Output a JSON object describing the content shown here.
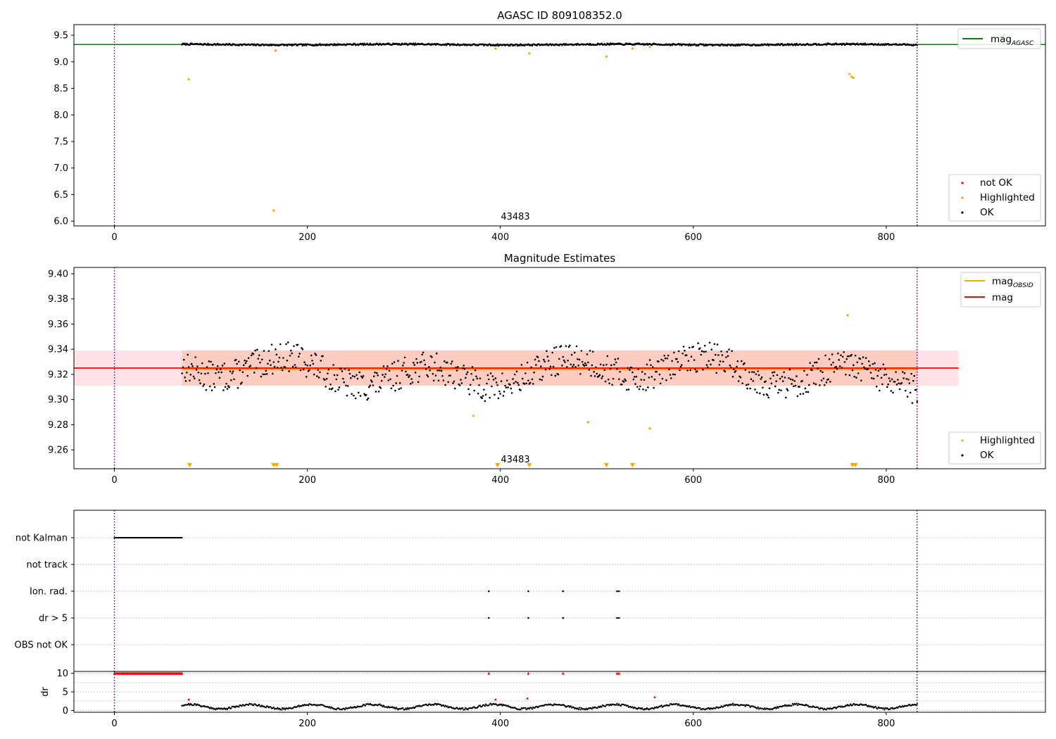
{
  "colors": {
    "ok": "#000000",
    "highlighted": "#ffa500",
    "not_ok": "#ff0000",
    "mag_agasc_line": "#008000",
    "mag_obsid_line": "#ffa500",
    "mag_line": "#ff0000",
    "vline": "#800080",
    "band_obsid": "#ffa07a",
    "band_mag": "#ffc0cb"
  },
  "chart_data": [
    {
      "type": "scatter",
      "title": "AGASC ID 809108352.0",
      "xlim": [
        -42,
        965
      ],
      "ylim": [
        5.91,
        9.7
      ],
      "x_ticks": [
        "0",
        "200",
        "400",
        "600",
        "800"
      ],
      "y_ticks": [
        "6.0",
        "6.5",
        "7.0",
        "7.5",
        "8.0",
        "8.5",
        "9.0",
        "9.5"
      ],
      "annotation": "43483",
      "vertical_lines": [
        0,
        832
      ],
      "hlines": [
        {
          "name": "mag_AGASC",
          "y": 9.325
        }
      ],
      "legend_upper": [
        {
          "label_main": "mag",
          "label_sub": "AGASC",
          "color_key": "mag_agasc_line"
        }
      ],
      "legend_lower": [
        {
          "label": "not OK",
          "color_key": "not_ok"
        },
        {
          "label": "Highlighted",
          "color_key": "highlighted"
        },
        {
          "label": "OK",
          "color_key": "ok"
        }
      ],
      "ok_series": {
        "x_range": [
          70,
          832
        ],
        "baseline": 9.325,
        "noise": 0.015
      },
      "highlighted_points": [
        [
          77,
          8.67
        ],
        [
          165,
          6.2
        ],
        [
          167,
          9.21
        ],
        [
          395,
          9.25
        ],
        [
          430,
          9.16
        ],
        [
          510,
          9.1
        ],
        [
          537,
          9.25
        ],
        [
          555,
          9.28
        ],
        [
          762,
          8.77
        ],
        [
          764,
          8.72
        ],
        [
          766,
          8.7
        ]
      ]
    },
    {
      "type": "scatter",
      "title": "Magnitude Estimates",
      "xlim": [
        -42,
        965
      ],
      "ylim": [
        9.245,
        9.405
      ],
      "x_ticks": [
        "0",
        "200",
        "400",
        "600",
        "800"
      ],
      "y_ticks": [
        "9.26",
        "9.28",
        "9.30",
        "9.32",
        "9.34",
        "9.36",
        "9.38",
        "9.40"
      ],
      "annotation": "43483",
      "vertical_lines": [
        0,
        832
      ],
      "mag_line": {
        "y": 9.325,
        "band": [
          9.311,
          9.339
        ],
        "x_range": [
          -42,
          875
        ]
      },
      "mag_obsid_line": {
        "y": 9.324,
        "band": [
          9.311,
          9.339
        ],
        "x_range": [
          70,
          832
        ]
      },
      "legend_upper": [
        {
          "label_main": "mag",
          "label_sub": "OBSID",
          "color_key": "mag_obsid_line"
        },
        {
          "label_main": "mag",
          "label_sub": "",
          "color_key": "mag_line"
        }
      ],
      "legend_lower": [
        {
          "label": "Highlighted",
          "color_key": "highlighted"
        },
        {
          "label": "OK",
          "color_key": "ok"
        }
      ],
      "ok_series": {
        "x_range": [
          70,
          832
        ],
        "baseline": 9.322,
        "noise": 0.012
      },
      "highlighted_points": [
        [
          372,
          9.287
        ],
        [
          491,
          9.282
        ],
        [
          555,
          9.277
        ],
        [
          760,
          9.367
        ]
      ],
      "down_markers": [
        78,
        165,
        168,
        397,
        430,
        510,
        537,
        765,
        768
      ]
    },
    {
      "type": "scatter",
      "title": "",
      "xlim": [
        -42,
        965
      ],
      "categories": [
        "not Kalman",
        "not track",
        "Ion. rad.",
        "dr > 5",
        "OBS not OK"
      ],
      "vertical_lines": [
        0,
        832
      ],
      "flags": {
        "not_kalman": {
          "x_range": [
            0,
            70
          ]
        },
        "ion_rad": [
          388,
          429,
          465,
          521,
          523
        ],
        "dr_gt_5": [
          388,
          429,
          465,
          521,
          523
        ]
      }
    },
    {
      "type": "scatter",
      "title": "",
      "ylabel": "dr",
      "xlim": [
        -42,
        965
      ],
      "ylim": [
        -0.5,
        10.5
      ],
      "x_ticks": [
        "0",
        "200",
        "400",
        "600",
        "800"
      ],
      "y_ticks": [
        "0",
        "5",
        "10"
      ],
      "vertical_lines": [
        0,
        832
      ],
      "clipped_red": {
        "x_range": [
          0,
          70
        ],
        "extra_x": [
          388,
          429,
          465,
          521,
          523
        ],
        "y": 10
      },
      "red_points": [
        [
          77,
          2.9
        ],
        [
          395,
          2.9
        ],
        [
          428,
          3.2
        ],
        [
          560,
          3.5
        ]
      ],
      "ok_series": {
        "x_range": [
          70,
          832
        ],
        "baseline": 1.0,
        "amplitude": 0.6
      }
    }
  ]
}
